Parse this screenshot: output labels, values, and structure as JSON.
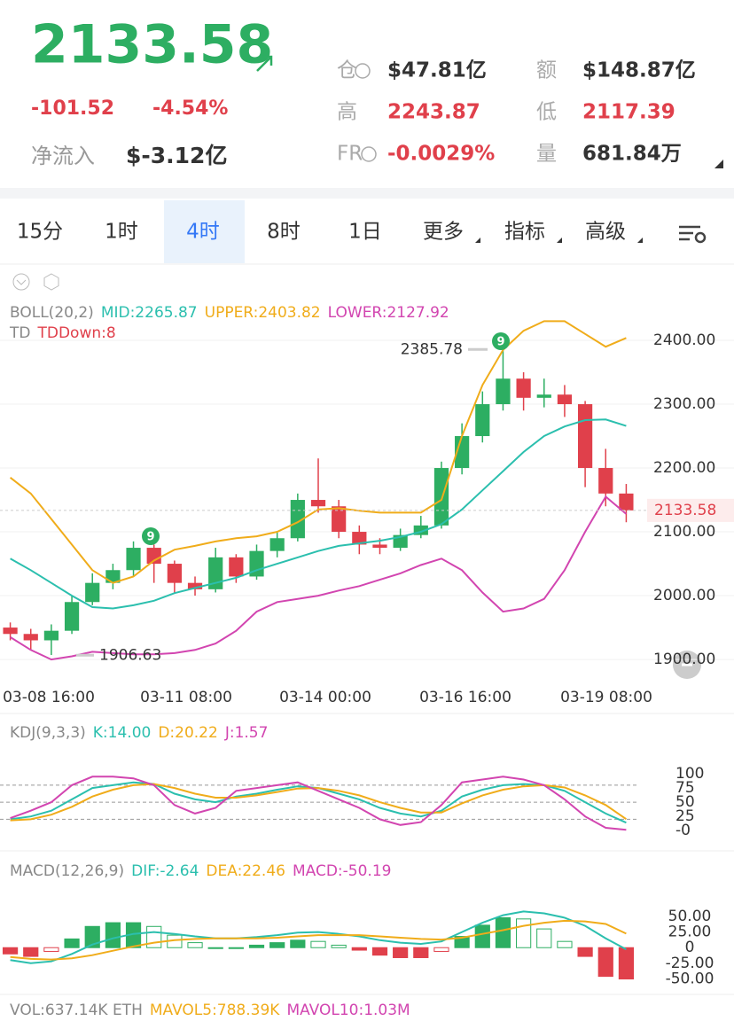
{
  "header": {
    "price": "2133.58",
    "change": "-101.52",
    "change_pct": "-4.54%",
    "netflow_label": "净流入",
    "netflow": "$-3.12亿",
    "stats": [
      {
        "label": "仓",
        "value": "$47.81亿",
        "info": true,
        "red": false
      },
      {
        "label": "额",
        "value": "$148.87亿",
        "info": false,
        "red": false
      },
      {
        "label": "高",
        "value": "2243.87",
        "info": false,
        "red": true
      },
      {
        "label": "低",
        "value": "2117.39",
        "info": false,
        "red": true
      },
      {
        "label": "FR",
        "value": "-0.0029%",
        "info": true,
        "red": true
      },
      {
        "label": "量",
        "value": "681.84万",
        "info": false,
        "red": false
      }
    ]
  },
  "tabs": {
    "items": [
      "15分",
      "1时",
      "4时",
      "8时",
      "1日",
      "更多",
      "指标",
      "高级"
    ],
    "selected": 2,
    "dropdown": [
      5,
      6,
      7
    ]
  },
  "price_chart": {
    "boll_name": "BOLL(20,2)",
    "mid_label": "MID:2265.87",
    "upper_label": "UPPER:2403.82",
    "lower_label": "LOWER:2127.92",
    "td_name": "TD",
    "td_label": "TDDown:8",
    "ylim": [
      1864,
      2475
    ],
    "yticks": [
      {
        "value": 2400,
        "label": "2400.00"
      },
      {
        "value": 2300,
        "label": "2300.00"
      },
      {
        "value": 2200,
        "label": "2200.00"
      },
      {
        "value": 2100,
        "label": "2100.00"
      },
      {
        "value": 2000,
        "label": "2000.00"
      },
      {
        "value": 1900,
        "label": "1900.00"
      }
    ],
    "x_labels": [
      "03-08 16:00",
      "03-11 08:00",
      "03-14 00:00",
      "03-16 16:00",
      "03-19 08:00"
    ],
    "up_color": "#2dae62",
    "down_color": "#e0404b",
    "candles": [
      [
        1950,
        1940,
        1958,
        1930
      ],
      [
        1940,
        1930,
        1948,
        1915
      ],
      [
        1930,
        1945,
        1955,
        1907
      ],
      [
        1945,
        1990,
        2000,
        1940
      ],
      [
        1990,
        2020,
        2035,
        1985
      ],
      [
        2020,
        2040,
        2050,
        2010
      ],
      [
        2040,
        2075,
        2085,
        2030
      ],
      [
        2075,
        2050,
        2080,
        2020
      ],
      [
        2050,
        2020,
        2055,
        2005
      ],
      [
        2020,
        2010,
        2030,
        2000
      ],
      [
        2010,
        2060,
        2075,
        2005
      ],
      [
        2060,
        2030,
        2065,
        2020
      ],
      [
        2030,
        2070,
        2080,
        2025
      ],
      [
        2070,
        2090,
        2100,
        2060
      ],
      [
        2090,
        2150,
        2160,
        2085
      ],
      [
        2150,
        2140,
        2215,
        2130
      ],
      [
        2140,
        2100,
        2150,
        2090
      ],
      [
        2100,
        2080,
        2110,
        2065
      ],
      [
        2080,
        2075,
        2090,
        2065
      ],
      [
        2075,
        2095,
        2105,
        2070
      ],
      [
        2095,
        2110,
        2125,
        2090
      ],
      [
        2110,
        2200,
        2210,
        2105
      ],
      [
        2200,
        2250,
        2270,
        2190
      ],
      [
        2250,
        2300,
        2320,
        2240
      ],
      [
        2300,
        2340,
        2385.78,
        2290
      ],
      [
        2340,
        2310,
        2350,
        2290
      ],
      [
        2310,
        2315,
        2340,
        2295
      ],
      [
        2315,
        2300,
        2330,
        2280
      ],
      [
        2300,
        2200,
        2305,
        2170
      ],
      [
        2200,
        2160,
        2230,
        2140
      ],
      [
        2160,
        2133.58,
        2175,
        2115
      ]
    ],
    "lines": [
      {
        "color": "#2bbfae",
        "values": [
          2058,
          2040,
          2020,
          2000,
          1982,
          1980,
          1985,
          1992,
          2004,
          2012,
          2020,
          2028,
          2040,
          2050,
          2060,
          2070,
          2078,
          2082,
          2086,
          2092,
          2100,
          2112,
          2135,
          2165,
          2195,
          2225,
          2250,
          2265,
          2275,
          2276,
          2265.87
        ]
      },
      {
        "color": "#f0ac1a",
        "values": [
          2185,
          2160,
          2120,
          2080,
          2040,
          2020,
          2030,
          2055,
          2072,
          2078,
          2085,
          2090,
          2093,
          2100,
          2115,
          2135,
          2137,
          2133,
          2130,
          2130,
          2130,
          2150,
          2250,
          2330,
          2385,
          2415,
          2430,
          2430,
          2410,
          2390,
          2403.82
        ]
      },
      {
        "color": "#d245b0",
        "values": [
          1935,
          1915,
          1900,
          1905,
          1912,
          1910,
          1908,
          1908,
          1910,
          1915,
          1925,
          1945,
          1975,
          1990,
          1995,
          2000,
          2008,
          2015,
          2025,
          2035,
          2048,
          2058,
          2040,
          2005,
          1975,
          1980,
          1995,
          2040,
          2100,
          2155,
          2127.92
        ]
      }
    ],
    "high_mark": {
      "value": 2385.78,
      "label": "2385.78"
    },
    "low_mark": {
      "value": 1906.63,
      "label": "1906.63"
    },
    "last": {
      "value": 2133.58,
      "label": "2133.58"
    },
    "td_badge": "9"
  },
  "kdj": {
    "name": "KDJ(9,3,3)",
    "k_label": "K:14.00",
    "d_label": "D:20.22",
    "j_label": "J:1.57",
    "ylim": [
      -20,
      136
    ],
    "yticks": [
      100,
      75,
      50,
      25,
      {
        "value": 0,
        "label": "-0"
      }
    ],
    "ref_lines": [
      80,
      50,
      20
    ],
    "series": [
      {
        "color": "#2bbfae",
        "values": [
          20,
          25,
          35,
          55,
          75,
          80,
          85,
          82,
          65,
          55,
          50,
          60,
          65,
          72,
          78,
          75,
          65,
          55,
          40,
          30,
          25,
          35,
          60,
          72,
          80,
          82,
          80,
          70,
          50,
          30,
          14
        ]
      },
      {
        "color": "#f0ac1a",
        "values": [
          18,
          20,
          28,
          42,
          60,
          72,
          80,
          82,
          75,
          65,
          58,
          58,
          62,
          68,
          74,
          75,
          70,
          62,
          50,
          40,
          32,
          32,
          48,
          62,
          72,
          78,
          80,
          76,
          62,
          45,
          20.22
        ]
      },
      {
        "color": "#d245b0",
        "values": [
          22,
          35,
          50,
          80,
          95,
          95,
          92,
          80,
          45,
          30,
          40,
          70,
          75,
          80,
          85,
          70,
          55,
          40,
          20,
          10,
          15,
          45,
          85,
          90,
          95,
          90,
          80,
          55,
          25,
          5,
          1.57
        ]
      }
    ]
  },
  "macd": {
    "name": "MACD(12,26,9)",
    "dif_label": "DIF:-2.64",
    "dea_label": "DEA:22.46",
    "macd_label": "MACD:-50.19",
    "ylim": [
      -65,
      77
    ],
    "yticks": [
      {
        "value": 50,
        "label": "50.00"
      },
      {
        "value": 25,
        "label": "25.00"
      },
      0,
      {
        "value": -25,
        "label": "-25.00"
      },
      {
        "value": -50,
        "label": "-50.00"
      }
    ],
    "series": [
      {
        "color": "#2bbfae",
        "values": [
          -20,
          -25,
          -22,
          -10,
          5,
          15,
          22,
          25,
          22,
          18,
          15,
          15,
          17,
          20,
          24,
          25,
          22,
          18,
          12,
          8,
          6,
          10,
          25,
          40,
          52,
          58,
          55,
          48,
          35,
          15,
          -2.64
        ]
      },
      {
        "color": "#f0ac1a",
        "values": [
          -15,
          -18,
          -19,
          -17,
          -12,
          -5,
          2,
          8,
          12,
          14,
          15,
          15,
          15,
          16,
          18,
          20,
          20,
          20,
          18,
          16,
          14,
          13,
          16,
          22,
          28,
          35,
          40,
          43,
          42,
          38,
          22.46
        ]
      }
    ],
    "hist": [
      -10,
      -14,
      -6,
      14,
      34,
      40,
      40,
      34,
      20,
      8,
      0,
      0,
      4,
      8,
      12,
      10,
      4,
      -4,
      -12,
      -16,
      -16,
      -6,
      18,
      36,
      48,
      46,
      30,
      10,
      -14,
      -46,
      -50.19
    ]
  },
  "vol": {
    "label": "VOL:637.14K ETH",
    "ma5": "MAVOL5:788.39K",
    "ma10": "MAVOL10:1.03M"
  }
}
